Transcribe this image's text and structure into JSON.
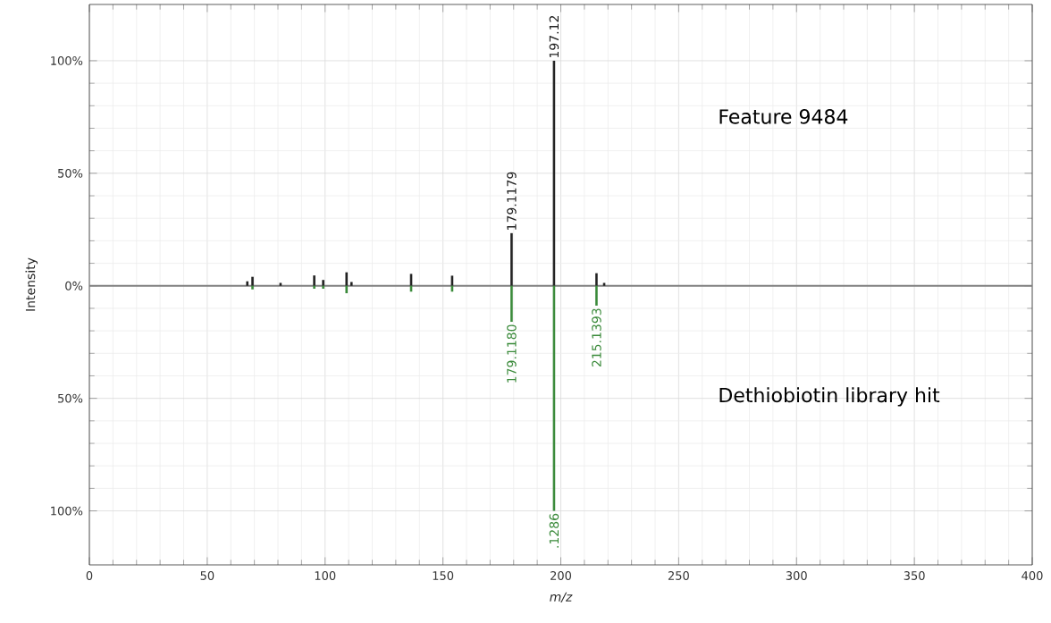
{
  "chart_data": {
    "type": "bar",
    "xlabel": "m/z",
    "ylabel": "Intensity",
    "xlim": [
      0,
      400
    ],
    "xticks": [
      0,
      50,
      100,
      150,
      200,
      250,
      300,
      350,
      400
    ],
    "ylim": [
      -124,
      125
    ],
    "yticks": [
      {
        "value": -100,
        "label": "100%"
      },
      {
        "value": -50,
        "label": "50%"
      },
      {
        "value": 0,
        "label": "0%"
      },
      {
        "value": 50,
        "label": "50%"
      },
      {
        "value": 100,
        "label": "100%"
      }
    ],
    "grid": true,
    "ref_lines": [
      {
        "axis": "y",
        "value": 0,
        "color": "#808080"
      }
    ],
    "annotations": [
      "Feature 9484",
      "Dethiobiotin library hit",
      {
        "text": "179.1179",
        "x": 179.1179,
        "y": 23.4
      },
      {
        "text": "197.12",
        "x": 197.12,
        "y": 100
      },
      {
        "text": "179.1180",
        "x": 179.118,
        "y": -16
      },
      {
        "text": ".1286",
        "x": 197.1286,
        "y": -100
      },
      {
        "text": "215.1393",
        "x": 215.1393,
        "y": -8.8
      }
    ],
    "series": [
      {
        "color": "#222222",
        "x": [
          67.0,
          69.2,
          81.1,
          95.4,
          99.2,
          109.1,
          111.2,
          136.5,
          153.9,
          179.1179,
          197.12,
          215.14,
          218.4
        ],
        "values": [
          2,
          4,
          1.3,
          4.6,
          2.6,
          6,
          1.7,
          5.3,
          4.5,
          23.4,
          100,
          5.6,
          1.3
        ]
      },
      {
        "color": "#3a8a3a",
        "x": [
          69.2,
          95.4,
          99.2,
          109.1,
          136.5,
          153.9,
          179.118,
          197.1286,
          215.1393
        ],
        "values": [
          -1.6,
          -1.3,
          -1.3,
          -3.3,
          -2.6,
          -2.6,
          -16,
          -100,
          -8.8
        ]
      }
    ]
  }
}
